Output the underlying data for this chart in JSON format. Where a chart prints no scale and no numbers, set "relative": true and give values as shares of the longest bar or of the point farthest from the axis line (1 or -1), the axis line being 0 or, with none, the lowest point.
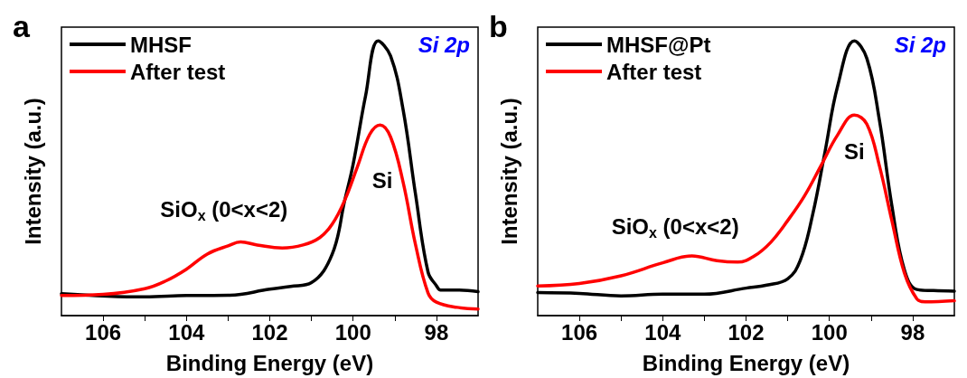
{
  "chart_data": [
    {
      "type": "line",
      "title": "Si 2p",
      "xlabel": "Binding Energy (eV)",
      "ylabel": "Intensity (a.u.)",
      "relative": true,
      "legend": "top left",
      "grid": false,
      "marker": "none",
      "line_style": "solid",
      "xlim": [
        107,
        97
      ],
      "xticks": [
        106,
        {
          "value": 105,
          "label": null
        },
        104,
        {
          "value": 103,
          "label": null
        },
        102,
        {
          "value": 101,
          "label": null
        },
        100,
        {
          "value": 99,
          "label": null
        },
        98
      ],
      "annotations": [
        "a",
        "SiO$_{x}$ (0<x<2)",
        "Si"
      ],
      "series": [
        {
          "name": "MHSF",
          "color": "#000000",
          "x": [
            107,
            105,
            104,
            103,
            102,
            101.5,
            101,
            100.5,
            100.2,
            100,
            99.7,
            99.4,
            99.1,
            98.8,
            98.5,
            98.2,
            98,
            97.9,
            97.5,
            97
          ],
          "values": [
            0.08,
            0.068,
            0.073,
            0.074,
            0.096,
            0.106,
            0.12,
            0.224,
            0.42,
            0.55,
            0.8,
            1,
            0.945,
            0.75,
            0.44,
            0.158,
            0.109,
            0.093,
            0.093,
            0.087
          ]
        },
        {
          "name": "After test",
          "color": "#ff0000",
          "x": [
            107,
            106,
            105,
            104.5,
            104,
            103.5,
            103,
            102.7,
            102.3,
            101.7,
            101.2,
            100.8,
            100.5,
            100.2,
            99.9,
            99.6,
            99.35,
            99.1,
            98.8,
            98.5,
            98.2,
            98,
            97.5,
            97
          ],
          "values": [
            0.073,
            0.077,
            0.098,
            0.126,
            0.169,
            0.224,
            0.254,
            0.268,
            0.257,
            0.246,
            0.257,
            0.284,
            0.333,
            0.42,
            0.54,
            0.66,
            0.694,
            0.65,
            0.486,
            0.257,
            0.082,
            0.049,
            0.03,
            0.024
          ]
        }
      ]
    },
    {
      "type": "line",
      "title": "Si 2p",
      "xlabel": "Binding Energy (eV)",
      "ylabel": "Intensity (a.u.)",
      "relative": true,
      "legend": "top left",
      "grid": false,
      "marker": "none",
      "line_style": "solid",
      "xlim": [
        107,
        97
      ],
      "xticks": [
        106,
        {
          "value": 105,
          "label": null
        },
        104,
        {
          "value": 103,
          "label": null
        },
        102,
        {
          "value": 101,
          "label": null
        },
        100,
        {
          "value": 99,
          "label": null
        },
        98
      ],
      "annotations": [
        "b",
        "SiO$_{x}$ (0<x<2)",
        "Si"
      ],
      "series": [
        {
          "name": "MHSF@Pt",
          "color": "#000000",
          "x": [
            107,
            106,
            105,
            104,
            103,
            102,
            101.5,
            101,
            100.7,
            100.4,
            100.1,
            99.8,
            99.4,
            99.1,
            98.8,
            98.5,
            98.2,
            97.9,
            97.5,
            97
          ],
          "values": [
            0.084,
            0.081,
            0.072,
            0.078,
            0.078,
            0.1,
            0.111,
            0.134,
            0.2,
            0.368,
            0.6,
            0.836,
            1,
            0.936,
            0.713,
            0.401,
            0.167,
            0.095,
            0.091,
            0.089
          ]
        },
        {
          "name": "After test",
          "color": "#ff0000",
          "x": [
            107,
            106,
            105,
            104,
            103.3,
            102.7,
            102.2,
            101.8,
            101.4,
            101,
            100.6,
            100.2,
            99.8,
            99.4,
            99.1,
            98.8,
            98.5,
            98.2,
            97.9,
            97.7,
            97
          ],
          "values": [
            0.108,
            0.117,
            0.145,
            0.192,
            0.217,
            0.2,
            0.195,
            0.217,
            0.268,
            0.346,
            0.435,
            0.546,
            0.658,
            0.73,
            0.697,
            0.546,
            0.346,
            0.156,
            0.061,
            0.05,
            0.054
          ]
        }
      ]
    }
  ]
}
